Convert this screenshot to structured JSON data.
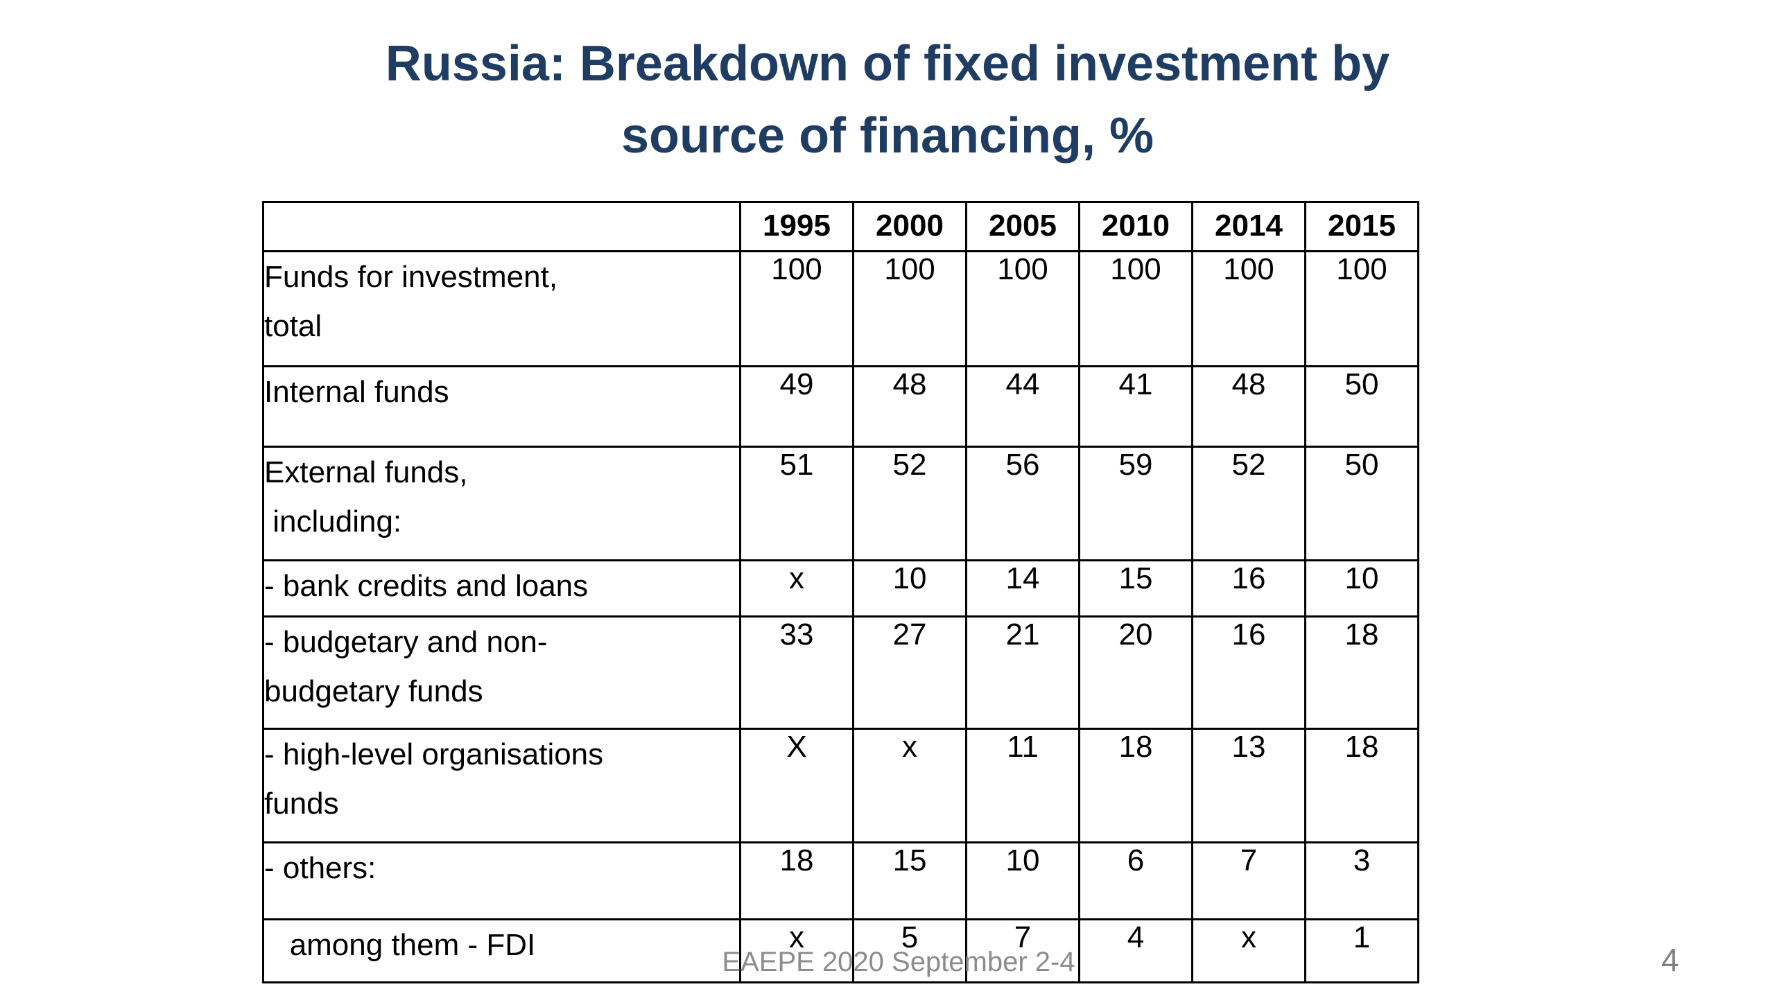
{
  "slide": {
    "title_line1": "Russia: Breakdown of fixed investment by",
    "title_line2": "source of financing, %",
    "footer": "EAEPE 2020 September 2-4",
    "page_number": "4"
  },
  "colors": {
    "title": "#1f3d63",
    "table_border": "#000000",
    "footer_gray": "#8c8c8c"
  },
  "table": {
    "headers": [
      "1995",
      "2000",
      "2005",
      "2010",
      "2014",
      "2015"
    ],
    "rows": [
      {
        "label": [
          "Funds for investment,",
          "total"
        ],
        "values": [
          "100",
          "100",
          "100",
          "100",
          "100",
          "100"
        ]
      },
      {
        "label": [
          "Internal funds"
        ],
        "values": [
          "49",
          "48",
          "44",
          "41",
          "48",
          "50"
        ]
      },
      {
        "label": [
          "External funds,",
          " including:"
        ],
        "values": [
          "51",
          "52",
          "56",
          "59",
          "52",
          "50"
        ]
      },
      {
        "label": [
          "- bank credits and loans"
        ],
        "values": [
          "x",
          "10",
          "14",
          "15",
          "16",
          "10"
        ]
      },
      {
        "label": [
          "- budgetary and non-",
          "budgetary funds"
        ],
        "values": [
          "33",
          "27",
          "21",
          "20",
          "16",
          "18"
        ]
      },
      {
        "label": [
          "- high-level organisations",
          "funds"
        ],
        "values": [
          "X",
          "x",
          "11",
          "18",
          "13",
          "18"
        ]
      },
      {
        "label": [
          "- others:"
        ],
        "values": [
          "18",
          "15",
          "10",
          "6",
          "7",
          "3"
        ]
      },
      {
        "label": [
          "   among them - FDI"
        ],
        "values": [
          "x",
          "5",
          "7",
          "4",
          "x",
          "1"
        ]
      }
    ]
  },
  "chart_data": {
    "type": "table",
    "title": "Russia: Breakdown of fixed investment by source of financing, %",
    "columns": [
      "1995",
      "2000",
      "2005",
      "2010",
      "2014",
      "2015"
    ],
    "rows": [
      {
        "label": "Funds for investment, total",
        "values": [
          100,
          100,
          100,
          100,
          100,
          100
        ]
      },
      {
        "label": "Internal funds",
        "values": [
          49,
          48,
          44,
          41,
          48,
          50
        ]
      },
      {
        "label": "External funds, including:",
        "values": [
          51,
          52,
          56,
          59,
          52,
          50
        ]
      },
      {
        "label": "- bank credits and loans",
        "values": [
          "x",
          10,
          14,
          15,
          16,
          10
        ]
      },
      {
        "label": "- budgetary and non-budgetary funds",
        "values": [
          33,
          27,
          21,
          20,
          16,
          18
        ]
      },
      {
        "label": "- high-level organisations funds",
        "values": [
          "X",
          "x",
          11,
          18,
          13,
          18
        ]
      },
      {
        "label": "- others:",
        "values": [
          18,
          15,
          10,
          6,
          7,
          3
        ]
      },
      {
        "label": "among them - FDI",
        "values": [
          "x",
          5,
          7,
          4,
          "x",
          1
        ]
      }
    ]
  }
}
